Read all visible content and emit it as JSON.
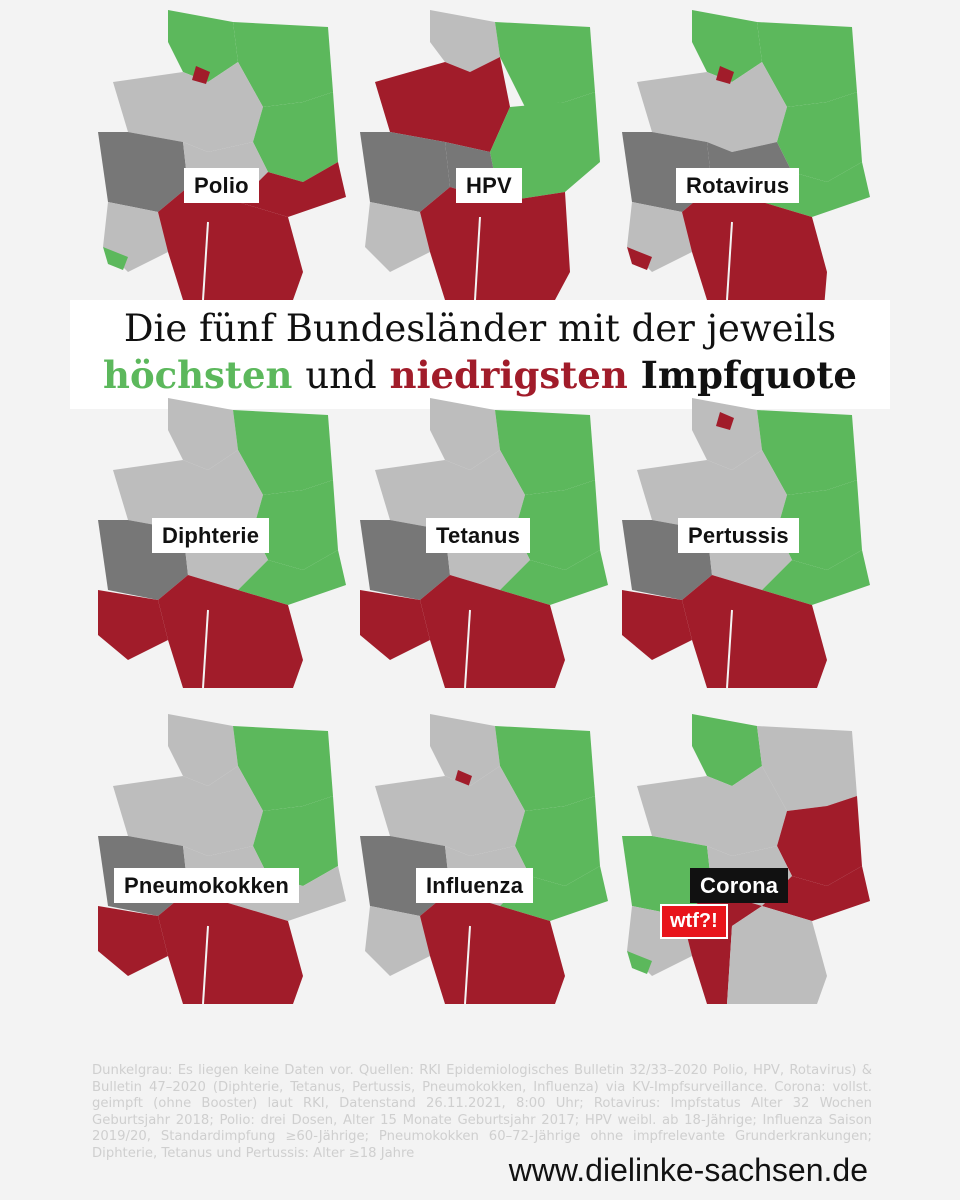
{
  "headline": {
    "line1": "Die fünf Bundesländer mit der jeweils",
    "word_highest": "höchsten",
    "word_and": "und",
    "word_lowest": "niedrigsten",
    "word_rate": "Impfquote"
  },
  "legend_colors": {
    "highest": "#5cb85c",
    "lowest": "#a11c2a",
    "no_data": "#777777",
    "other": "#bdbdbd"
  },
  "maps": [
    {
      "label": "Polio"
    },
    {
      "label": "HPV"
    },
    {
      "label": "Rotavirus"
    },
    {
      "label": "Diphterie"
    },
    {
      "label": "Tetanus"
    },
    {
      "label": "Pertussis"
    },
    {
      "label": "Pneumokokken"
    },
    {
      "label": "Influenza"
    },
    {
      "label": "Corona",
      "badge": "wtf?!"
    }
  ],
  "sources": "Dunkelgrau: Es liegen keine Daten vor. Quellen: RKI Epidemiologisches Bulletin 32/33–2020 Polio, HPV, Rotavirus) & Bulletin 47–2020 (Diphterie, Tetanus, Pertussis, Pneumokokken, Influenza) via KV-Impfsurveillance. Corona: vollst. geimpft (ohne Booster) laut RKI, Datenstand 26.11.2021, 8:00 Uhr; Rotavirus: Impfstatus Alter 32 Wochen Geburtsjahr 2018; Polio: drei Dosen, Alter 15 Monate Geburtsjahr 2017; HPV weibl. ab 18-Jährige; Influenza Saison 2019/20, Standardimpfung ≥60-Jährige; Pneumokokken 60–72-Jährige ohne impfrelevante Grunderkrankungen; Diphterie, Tetanus und Pertussis: Alter ≥18 Jahre",
  "url": "www.dielinke-sachsen.de"
}
